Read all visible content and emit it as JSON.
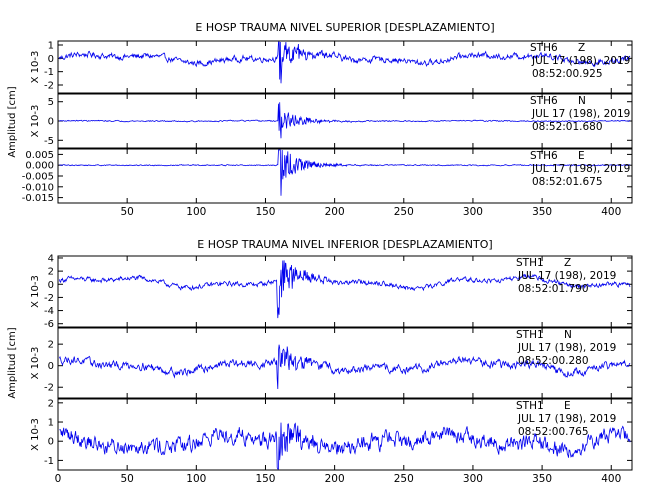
{
  "chart_data": [
    {
      "type": "line",
      "title": "E HOSP TRAUMA NIVEL SUPERIOR [DESPLAZAMIENTO]",
      "ylabel": "Amplitud [cm]",
      "xlim": [
        0,
        415
      ],
      "x_ticks": [
        "50",
        "100",
        "150",
        "200",
        "250",
        "300",
        "350",
        "400"
      ],
      "line_color": "#0000ee",
      "panels": [
        {
          "scale_label": "X 10-3",
          "ylim": [
            -2.6,
            1.3
          ],
          "y_ticks": [
            "1",
            "0",
            "-1",
            "-2"
          ],
          "station": "STH6",
          "component": "Z",
          "date": "JUL 17 (198), 2019",
          "time": "08:52:00.925",
          "noise": 0.18,
          "event_peak": 2.4,
          "offset": 0.0,
          "drift": 0.25
        },
        {
          "scale_label": "X 10-3",
          "ylim": [
            -7,
            7
          ],
          "y_ticks": [
            "5",
            "0",
            "-5"
          ],
          "station": "STH6",
          "component": "N",
          "date": "JUL 17 (198), 2019",
          "time": "08:52:01.680",
          "noise": 0.12,
          "event_peak": 5.5,
          "offset": 0.0,
          "drift": 0.05
        },
        {
          "scale_label": "",
          "ylim": [
            -0.0175,
            0.0075
          ],
          "y_ticks": [
            "0.005",
            "0.000",
            "-0.005",
            "-0.010",
            "-0.015"
          ],
          "station": "STH6",
          "component": "E",
          "date": "JUL 17 (198), 2019",
          "time": "08:52:01.675",
          "noise": 0.0002,
          "event_peak": 0.016,
          "offset": 0.0,
          "drift": 0.0
        }
      ]
    },
    {
      "type": "line",
      "title": "E HOSP TRAUMA NIVEL INFERIOR [DESPLAZAMIENTO]",
      "ylabel": "Amplitud [cm]",
      "xlim": [
        0,
        415
      ],
      "x_ticks": [
        "0",
        "50",
        "100",
        "150",
        "200",
        "250",
        "300",
        "350",
        "400"
      ],
      "line_color": "#0000ee",
      "panels": [
        {
          "scale_label": "X 10-3",
          "ylim": [
            -6.5,
            4.3
          ],
          "y_ticks": [
            "4",
            "2",
            "0",
            "-2",
            "-4",
            "-6"
          ],
          "station": "STH1",
          "component": "Z",
          "date": "JUL 17 (198), 2019",
          "time": "08:52:01.790",
          "noise": 0.3,
          "event_peak": 6.2,
          "offset": 0.3,
          "drift": 0.6
        },
        {
          "scale_label": "X 10-3",
          "ylim": [
            -3,
            3.5
          ],
          "y_ticks": [
            "2",
            "0",
            "-2"
          ],
          "station": "STH1",
          "component": "N",
          "date": "JUL 17 (198), 2019",
          "time": "08:52:00.280",
          "noise": 0.3,
          "event_peak": 2.8,
          "offset": 0.0,
          "drift": 0.4
        },
        {
          "scale_label": "X 10-3",
          "ylim": [
            -1.5,
            2.2
          ],
          "y_ticks": [
            "2",
            "1",
            "0",
            "-1"
          ],
          "station": "STH1",
          "component": "E",
          "date": "JUL 17 (198), 2019",
          "time": "08:52:00.765",
          "noise": 0.35,
          "event_peak": 1.9,
          "offset": 0.0,
          "drift": 0.3
        }
      ]
    }
  ]
}
